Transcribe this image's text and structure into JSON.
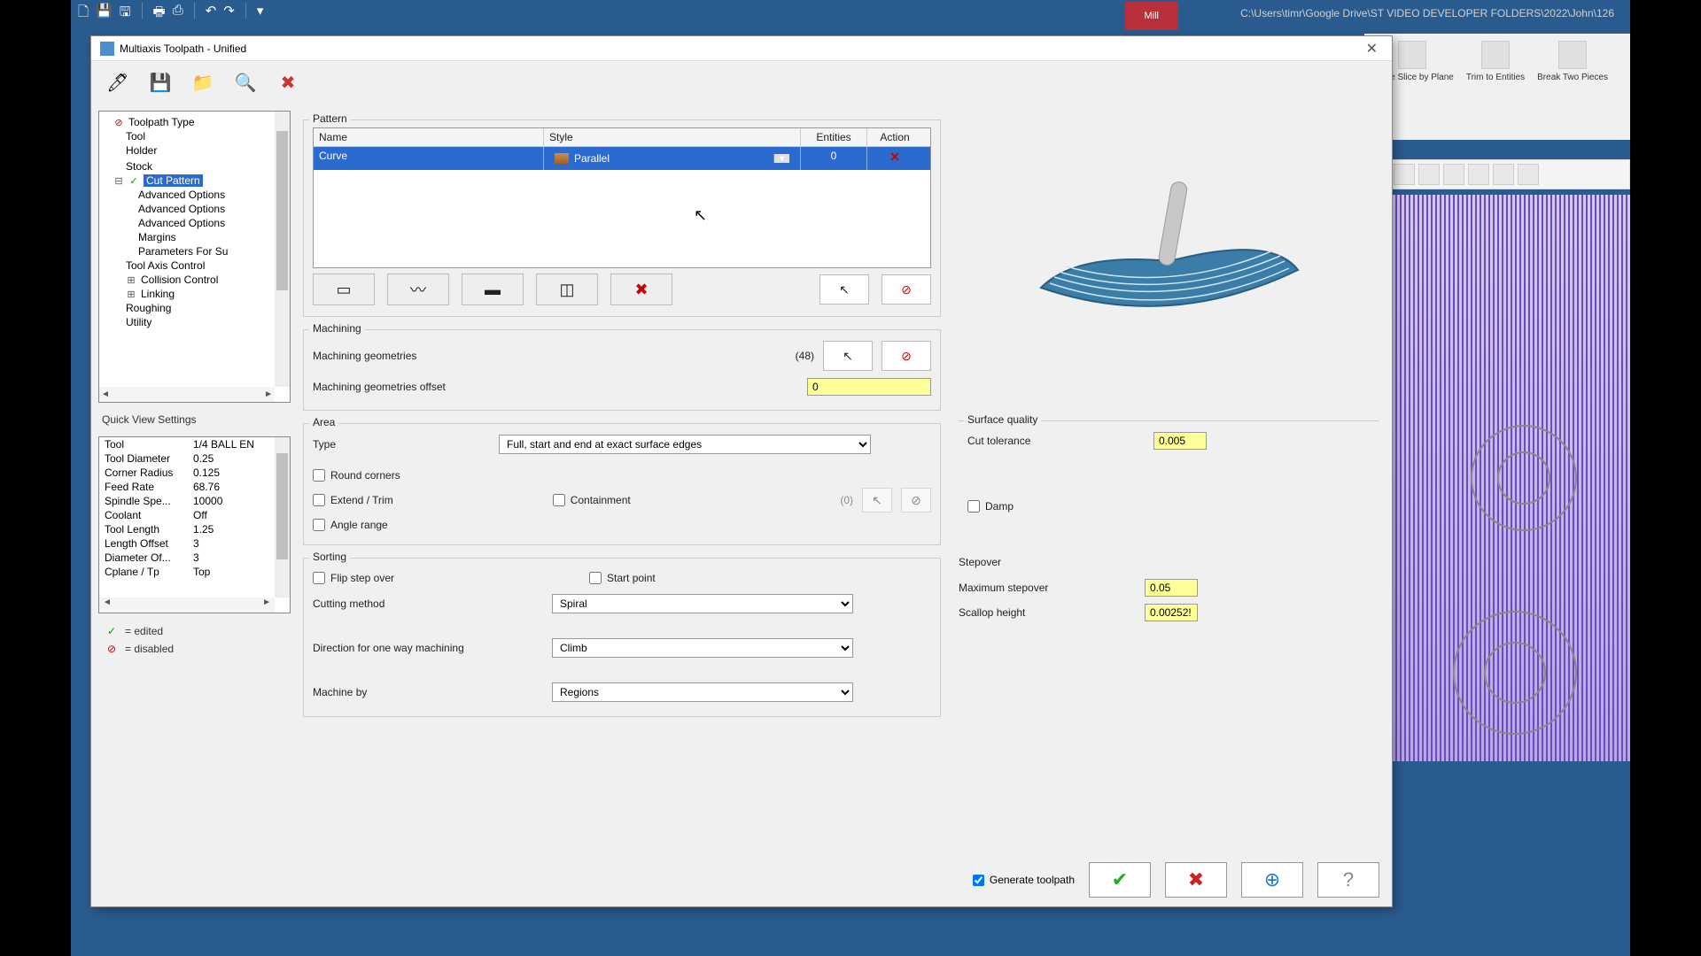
{
  "shell": {
    "path": "C:\\Users\\timr\\Google Drive\\ST VIDEO DEVELOPER FOLDERS\\2022\\John\\126",
    "mill_tab": "Mill"
  },
  "ribbon": {
    "items": [
      {
        "label": "Curve Slice by Plane"
      },
      {
        "label": "Trim to Entities"
      },
      {
        "label": "Break Two Pieces"
      }
    ]
  },
  "dialog": {
    "title": "Multiaxis Toolpath - Unified"
  },
  "tree": {
    "items": [
      {
        "label": "Toolpath Type",
        "indent": 1,
        "ico": "red"
      },
      {
        "label": "Tool",
        "indent": 2,
        "ico": ""
      },
      {
        "label": "Holder",
        "indent": 2,
        "ico": ""
      },
      {
        "label": "",
        "indent": 2,
        "ico": ""
      },
      {
        "label": "Stock",
        "indent": 2,
        "ico": ""
      },
      {
        "label": "Cut Pattern",
        "indent": 1,
        "ico": "green",
        "exp": "minus",
        "sel": true
      },
      {
        "label": "Advanced Options",
        "indent": 3,
        "ico": ""
      },
      {
        "label": "Advanced Options",
        "indent": 3,
        "ico": ""
      },
      {
        "label": "Advanced Options",
        "indent": 3,
        "ico": ""
      },
      {
        "label": "Margins",
        "indent": 3,
        "ico": ""
      },
      {
        "label": "Parameters For Su",
        "indent": 3,
        "ico": ""
      },
      {
        "label": "Tool Axis Control",
        "indent": 2,
        "ico": ""
      },
      {
        "label": "Collision Control",
        "indent": 2,
        "ico": "",
        "exp": "plus"
      },
      {
        "label": "Linking",
        "indent": 2,
        "ico": "",
        "exp": "plus"
      },
      {
        "label": "Roughing",
        "indent": 2,
        "ico": ""
      },
      {
        "label": "Utility",
        "indent": 2,
        "ico": ""
      }
    ]
  },
  "qvs": {
    "title": "Quick View Settings",
    "rows": [
      {
        "k": "Tool",
        "v": "1/4 BALL EN"
      },
      {
        "k": "Tool Diameter",
        "v": "0.25"
      },
      {
        "k": "Corner Radius",
        "v": "0.125"
      },
      {
        "k": "Feed Rate",
        "v": "68.76"
      },
      {
        "k": "Spindle Spe...",
        "v": "10000"
      },
      {
        "k": "Coolant",
        "v": "Off"
      },
      {
        "k": "Tool Length",
        "v": "1.25"
      },
      {
        "k": "Length Offset",
        "v": "3"
      },
      {
        "k": "Diameter Of...",
        "v": "3"
      },
      {
        "k": "Cplane / Tp",
        "v": "Top"
      }
    ]
  },
  "legend": {
    "edited": "= edited",
    "disabled": "= disabled"
  },
  "pattern": {
    "title": "Pattern",
    "cols": {
      "name": "Name",
      "style": "Style",
      "entities": "Entities",
      "action": "Action"
    },
    "row": {
      "name": "Curve",
      "style": "Parallel",
      "entities": "0"
    }
  },
  "machining": {
    "title": "Machining",
    "geom_label": "Machining geometries",
    "geom_count": "(48)",
    "offset_label": "Machining geometries offset",
    "offset_value": "0"
  },
  "area": {
    "title": "Area",
    "type_label": "Type",
    "type_value": "Full, start and end at exact surface edges",
    "round": "Round corners",
    "extend": "Extend / Trim",
    "containment": "Containment",
    "containment_count": "(0)",
    "angle": "Angle range"
  },
  "sorting": {
    "title": "Sorting",
    "flip": "Flip step over",
    "start": "Start point",
    "cutting_label": "Cutting method",
    "cutting_value": "Spiral",
    "dir_label": "Direction for one way machining",
    "dir_value": "Climb",
    "machineby_label": "Machine by",
    "machineby_value": "Regions"
  },
  "surface": {
    "title": "Surface quality",
    "cuttol_label": "Cut tolerance",
    "cuttol_value": "0.005",
    "damp": "Damp"
  },
  "stepover": {
    "title": "Stepover",
    "max_label": "Maximum stepover",
    "max_value": "0.05",
    "scallop_label": "Scallop height",
    "scallop_value": "0.00252!"
  },
  "footer": {
    "gen": "Generate toolpath"
  },
  "colors": {
    "select_bg": "#2b6bd0",
    "yellow": "#ffff99",
    "panel": "#f0f0f0"
  }
}
